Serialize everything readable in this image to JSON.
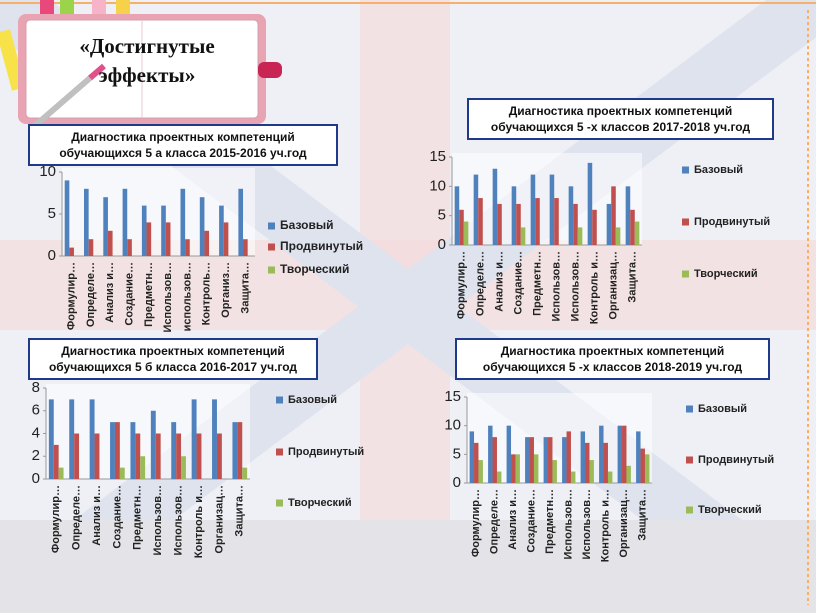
{
  "slide_title": "«Достигнутые эффекты»",
  "chart_data": [
    {
      "type": "bar",
      "title": "Диагностика проектных компетенций обучающихся 5 а класса 2015-2016 уч.год",
      "categories": [
        "Формулир…",
        "Определе…",
        "Анализ и…",
        "Создание…",
        "Предметн…",
        "Использов…",
        "использов…",
        "Контроль…",
        "Организ…",
        "Защита…"
      ],
      "series": [
        {
          "name": "Базовый",
          "color": "#4f81bd",
          "values": [
            9,
            8,
            7,
            8,
            6,
            6,
            8,
            7,
            6,
            8
          ]
        },
        {
          "name": "Продвинутый",
          "color": "#c0504d",
          "values": [
            1,
            2,
            3,
            2,
            4,
            4,
            2,
            3,
            4,
            2
          ]
        },
        {
          "name": "Творческий",
          "color": "#9bbb59",
          "values": [
            0,
            0,
            0,
            0,
            0,
            0,
            0,
            0,
            0,
            0
          ]
        }
      ],
      "ylim": [
        0,
        10
      ],
      "yticks": [
        0,
        5,
        10
      ]
    },
    {
      "type": "bar",
      "title": "Диагностика проектных компетенций обучающихся 5 -х классов 2017-2018 уч.год",
      "categories": [
        "Формулир…",
        "Определе…",
        "Анализ и…",
        "Создание…",
        "Предметн…",
        "Использов…",
        "Использов…",
        "Контроль и…",
        "Организац…",
        "Защита…"
      ],
      "series": [
        {
          "name": "Базовый",
          "color": "#4f81bd",
          "values": [
            10,
            12,
            13,
            10,
            12,
            12,
            10,
            14,
            7,
            10
          ]
        },
        {
          "name": "Продвинутый",
          "color": "#c0504d",
          "values": [
            6,
            8,
            7,
            7,
            8,
            8,
            7,
            6,
            10,
            6
          ]
        },
        {
          "name": "Творческий",
          "color": "#9bbb59",
          "values": [
            4,
            0,
            0,
            3,
            0,
            0,
            3,
            0,
            3,
            4
          ]
        }
      ],
      "ylim": [
        0,
        15
      ],
      "yticks": [
        0,
        5,
        10,
        15
      ]
    },
    {
      "type": "bar",
      "title": "Диагностика проектных компетенций обучающихся 5 б класса 2016-2017 уч.год",
      "categories": [
        "Формулир…",
        "Определе…",
        "Анализ и…",
        "Создание…",
        "Предметн…",
        "Использов…",
        "Использов…",
        "Контроль и…",
        "Организац…",
        "Защита…"
      ],
      "series": [
        {
          "name": "Базовый",
          "color": "#4f81bd",
          "values": [
            7,
            7,
            7,
            5,
            5,
            6,
            5,
            7,
            7,
            5
          ]
        },
        {
          "name": "Продвинутый",
          "color": "#c0504d",
          "values": [
            3,
            4,
            4,
            5,
            4,
            4,
            4,
            4,
            4,
            5
          ]
        },
        {
          "name": "Творческий",
          "color": "#9bbb59",
          "values": [
            1,
            0,
            0,
            1,
            2,
            0,
            2,
            0,
            0,
            1
          ]
        }
      ],
      "ylim": [
        0,
        8
      ],
      "yticks": [
        0,
        2,
        4,
        6,
        8
      ]
    },
    {
      "type": "bar",
      "title": "Диагностика проектных компетенций обучающихся 5 -х классов 2018-2019 уч.год",
      "categories": [
        "Формулир…",
        "Определе…",
        "Анализ и…",
        "Создание…",
        "Предметн…",
        "Использов…",
        "Использов…",
        "Контроль и…",
        "Организац…",
        "Защита…"
      ],
      "series": [
        {
          "name": "Базовый",
          "color": "#4f81bd",
          "values": [
            9,
            10,
            10,
            8,
            8,
            8,
            9,
            10,
            10,
            9
          ]
        },
        {
          "name": "Продвинутый",
          "color": "#c0504d",
          "values": [
            7,
            8,
            5,
            8,
            8,
            9,
            7,
            7,
            10,
            6
          ]
        },
        {
          "name": "Творческий",
          "color": "#9bbb59",
          "values": [
            4,
            2,
            5,
            5,
            4,
            2,
            4,
            2,
            3,
            5
          ]
        }
      ],
      "ylim": [
        0,
        15
      ],
      "yticks": [
        0,
        5,
        10,
        15
      ]
    }
  ]
}
